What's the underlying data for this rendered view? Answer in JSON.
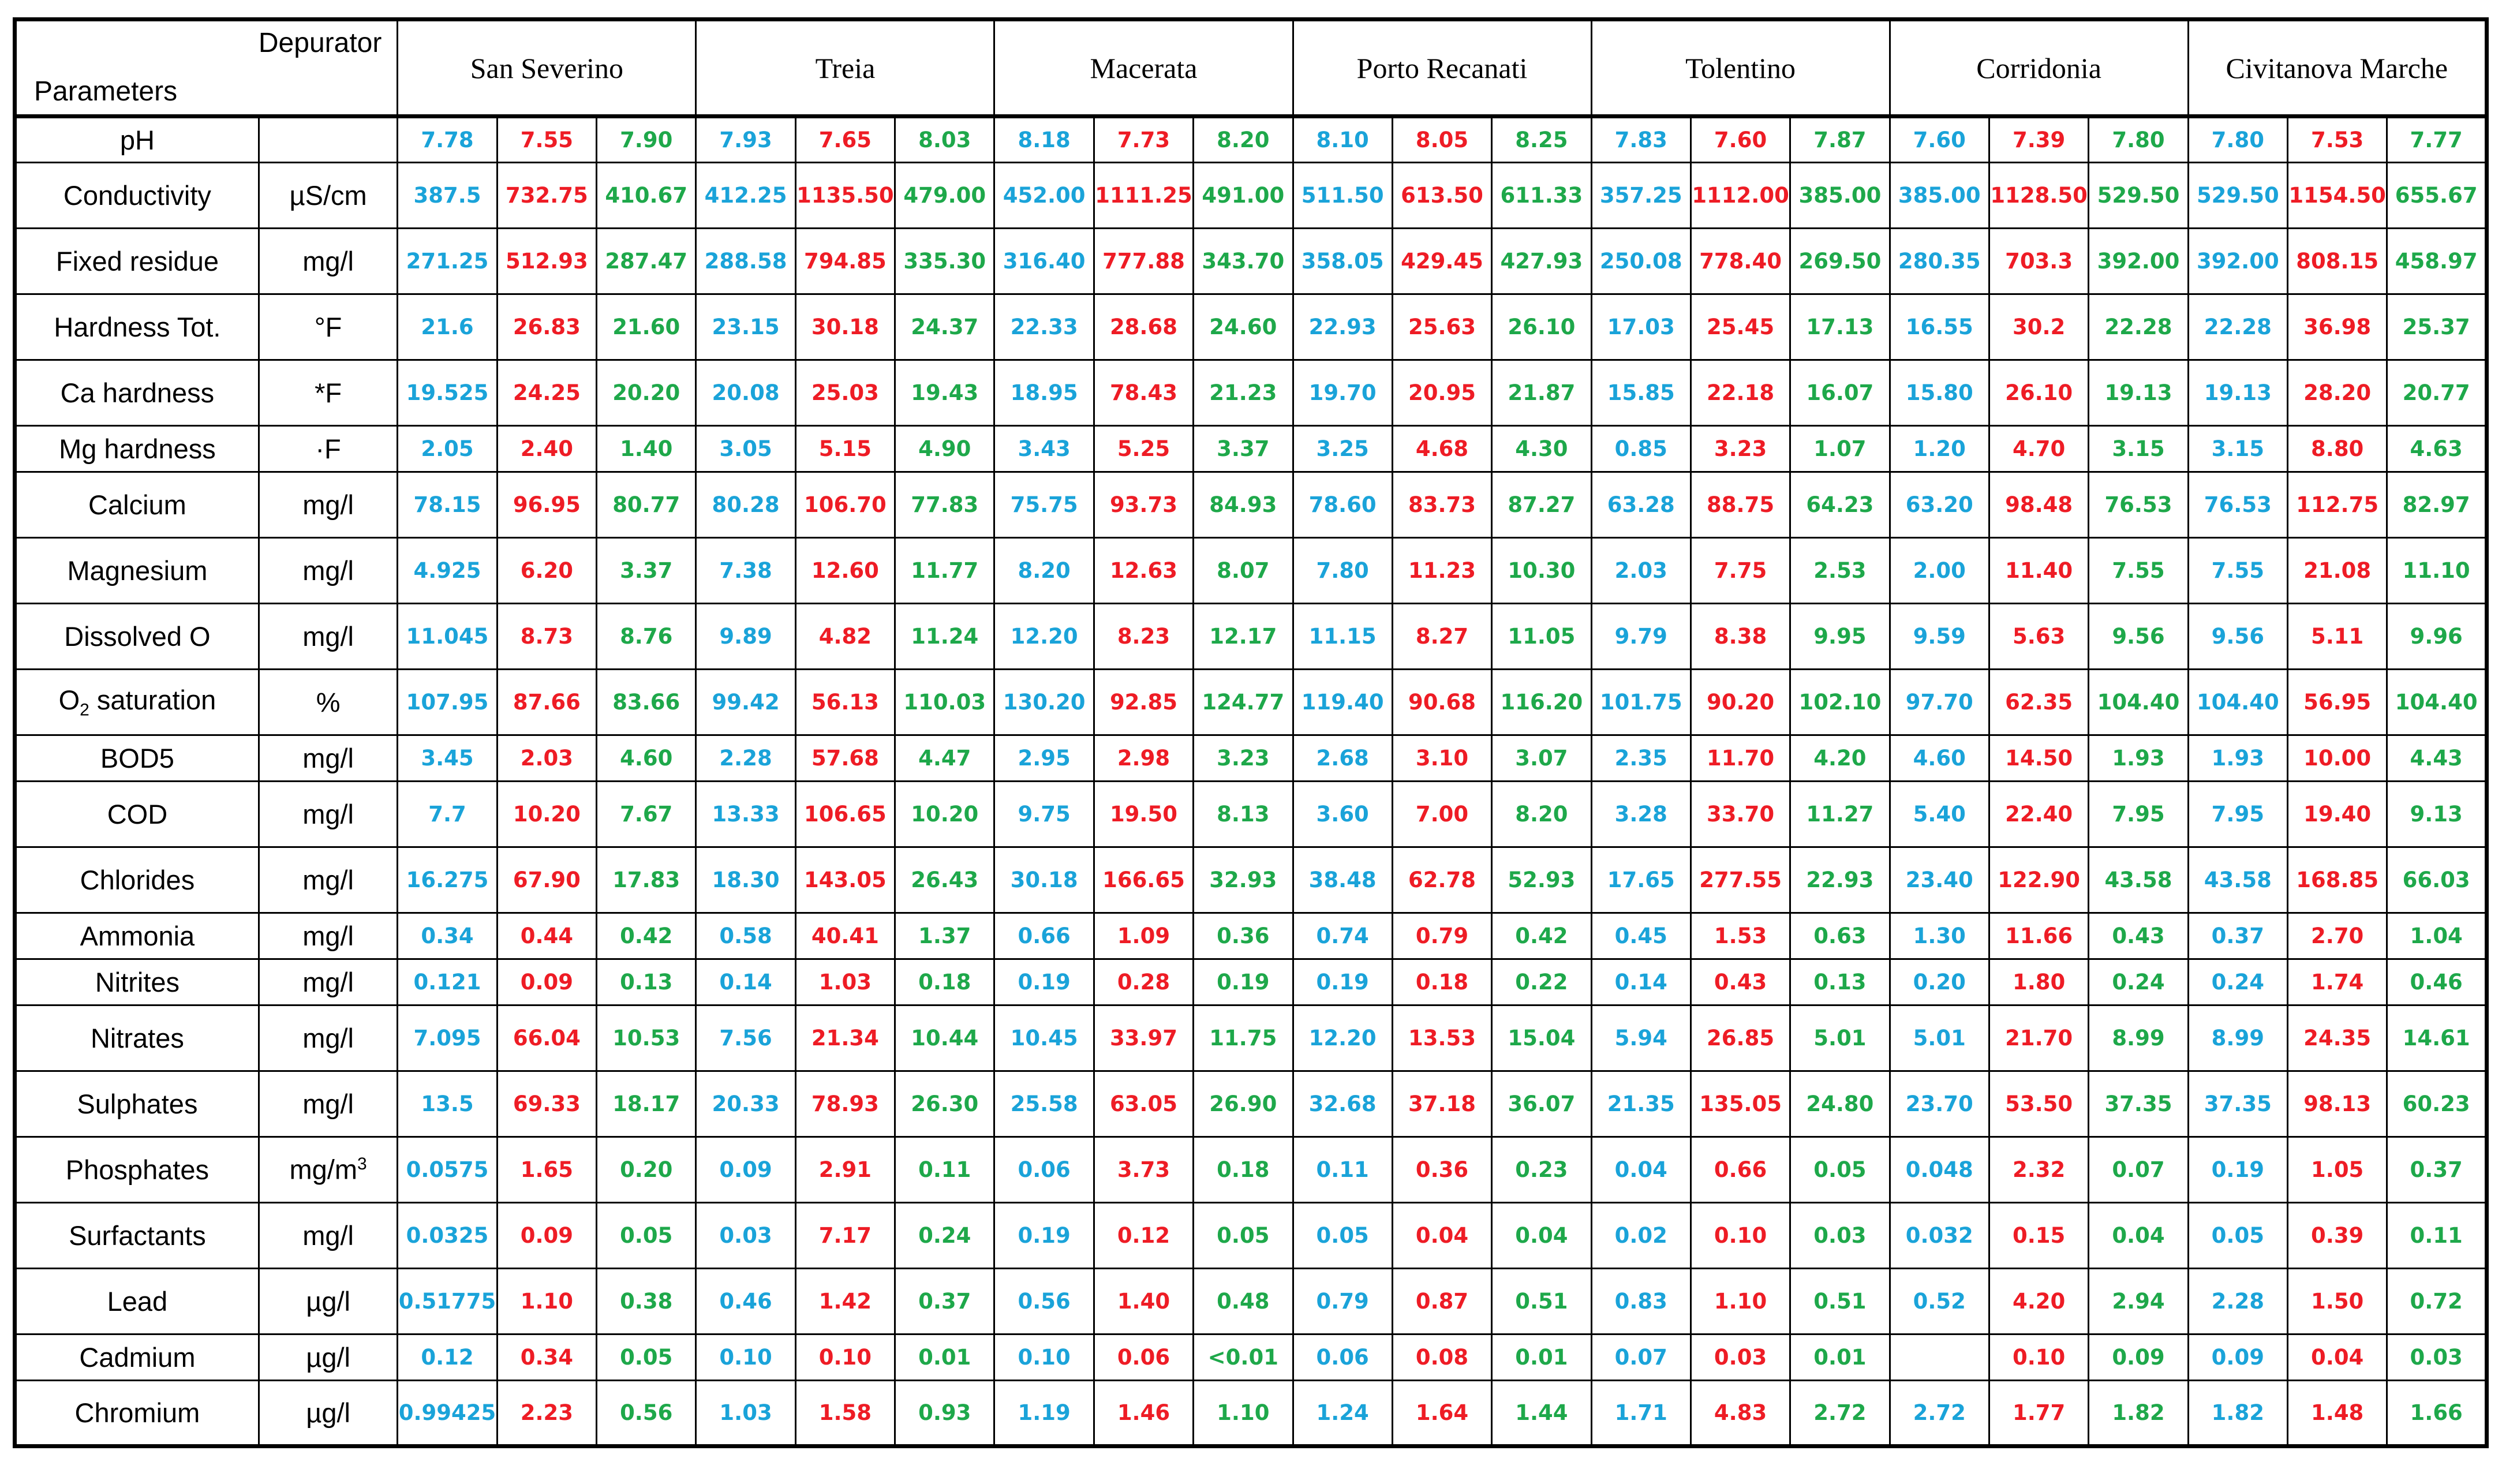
{
  "header": {
    "depurator_label": "Depurator",
    "parameters_label": "Parameters",
    "sites": [
      "San Severino",
      "Treia",
      "Macerata",
      "Porto Recanati",
      "Tolentino",
      "Corridonia",
      "Civitanova Marche"
    ]
  },
  "colors": {
    "col_1": "#1aa3d9",
    "col_2": "#ee1c25",
    "col_3": "#1ea84a"
  },
  "rows": [
    {
      "name": "pH",
      "unit": "",
      "values": [
        "7.78",
        "7.55",
        "7.90",
        "7.93",
        "7.65",
        "8.03",
        "8.18",
        "7.73",
        "8.20",
        "8.10",
        "8.05",
        "8.25",
        "7.83",
        "7.60",
        "7.87",
        "7.60",
        "7.39",
        "7.80",
        "7.80",
        "7.53",
        "7.77"
      ]
    },
    {
      "name": "Conductivity",
      "unit": "µS/cm",
      "values": [
        "387.5",
        "732.75",
        "410.67",
        "412.25",
        "1135.50",
        "479.00",
        "452.00",
        "1111.25",
        "491.00",
        "511.50",
        "613.50",
        "611.33",
        "357.25",
        "1112.00",
        "385.00",
        "385.00",
        "1128.50",
        "529.50",
        "529.50",
        "1154.50",
        "655.67"
      ]
    },
    {
      "name": "Fixed residue",
      "unit": "mg/l",
      "values": [
        "271.25",
        "512.93",
        "287.47",
        "288.58",
        "794.85",
        "335.30",
        "316.40",
        "777.88",
        "343.70",
        "358.05",
        "429.45",
        "427.93",
        "250.08",
        "778.40",
        "269.50",
        "280.35",
        "703.3",
        "392.00",
        "392.00",
        "808.15",
        "458.97"
      ]
    },
    {
      "name": "Hardness Tot.",
      "unit": "°F",
      "values": [
        "21.6",
        "26.83",
        "21.60",
        "23.15",
        "30.18",
        "24.37",
        "22.33",
        "28.68",
        "24.60",
        "22.93",
        "25.63",
        "26.10",
        "17.03",
        "25.45",
        "17.13",
        "16.55",
        "30.2",
        "22.28",
        "22.28",
        "36.98",
        "25.37"
      ]
    },
    {
      "name": "Ca hardness",
      "unit": "*F",
      "values": [
        "19.525",
        "24.25",
        "20.20",
        "20.08",
        "25.03",
        "19.43",
        "18.95",
        "78.43",
        "21.23",
        "19.70",
        "20.95",
        "21.87",
        "15.85",
        "22.18",
        "16.07",
        "15.80",
        "26.10",
        "19.13",
        "19.13",
        "28.20",
        "20.77"
      ]
    },
    {
      "name": "Mg hardness",
      "unit": "·F",
      "values": [
        "2.05",
        "2.40",
        "1.40",
        "3.05",
        "5.15",
        "4.90",
        "3.43",
        "5.25",
        "3.37",
        "3.25",
        "4.68",
        "4.30",
        "0.85",
        "3.23",
        "1.07",
        "1.20",
        "4.70",
        "3.15",
        "3.15",
        "8.80",
        "4.63"
      ]
    },
    {
      "name": "Calcium",
      "unit": "mg/l",
      "values": [
        "78.15",
        "96.95",
        "80.77",
        "80.28",
        "106.70",
        "77.83",
        "75.75",
        "93.73",
        "84.93",
        "78.60",
        "83.73",
        "87.27",
        "63.28",
        "88.75",
        "64.23",
        "63.20",
        "98.48",
        "76.53",
        "76.53",
        "112.75",
        "82.97"
      ]
    },
    {
      "name": "Magnesium",
      "unit": "mg/l",
      "values": [
        "4.925",
        "6.20",
        "3.37",
        "7.38",
        "12.60",
        "11.77",
        "8.20",
        "12.63",
        "8.07",
        "7.80",
        "11.23",
        "10.30",
        "2.03",
        "7.75",
        "2.53",
        "2.00",
        "11.40",
        "7.55",
        "7.55",
        "21.08",
        "11.10"
      ]
    },
    {
      "name": "Dissolved O",
      "unit": "mg/l",
      "values": [
        "11.045",
        "8.73",
        "8.76",
        "9.89",
        "4.82",
        "11.24",
        "12.20",
        "8.23",
        "12.17",
        "11.15",
        "8.27",
        "11.05",
        "9.79",
        "8.38",
        "9.95",
        "9.59",
        "5.63",
        "9.56",
        "9.56",
        "5.11",
        "9.96"
      ]
    },
    {
      "name_pre": "O",
      "name_sub": "2",
      "name_post": " saturation",
      "unit": "%",
      "values": [
        "107.95",
        "87.66",
        "83.66",
        "99.42",
        "56.13",
        "110.03",
        "130.20",
        "92.85",
        "124.77",
        "119.40",
        "90.68",
        "116.20",
        "101.75",
        "90.20",
        "102.10",
        "97.70",
        "62.35",
        "104.40",
        "104.40",
        "56.95",
        "104.40"
      ]
    },
    {
      "name": "BOD5",
      "unit": "mg/l",
      "values": [
        "3.45",
        "2.03",
        "4.60",
        "2.28",
        "57.68",
        "4.47",
        "2.95",
        "2.98",
        "3.23",
        "2.68",
        "3.10",
        "3.07",
        "2.35",
        "11.70",
        "4.20",
        "4.60",
        "14.50",
        "1.93",
        "1.93",
        "10.00",
        "4.43"
      ]
    },
    {
      "name": "COD",
      "unit": "mg/l",
      "values": [
        "7.7",
        "10.20",
        "7.67",
        "13.33",
        "106.65",
        "10.20",
        "9.75",
        "19.50",
        "8.13",
        "3.60",
        "7.00",
        "8.20",
        "3.28",
        "33.70",
        "11.27",
        "5.40",
        "22.40",
        "7.95",
        "7.95",
        "19.40",
        "9.13"
      ]
    },
    {
      "name": "Chlorides",
      "unit": "mg/l",
      "values": [
        "16.275",
        "67.90",
        "17.83",
        "18.30",
        "143.05",
        "26.43",
        "30.18",
        "166.65",
        "32.93",
        "38.48",
        "62.78",
        "52.93",
        "17.65",
        "277.55",
        "22.93",
        "23.40",
        "122.90",
        "43.58",
        "43.58",
        "168.85",
        "66.03"
      ]
    },
    {
      "name": "Ammonia",
      "unit": "mg/l",
      "values": [
        "0.34",
        "0.44",
        "0.42",
        "0.58",
        "40.41",
        "1.37",
        "0.66",
        "1.09",
        "0.36",
        "0.74",
        "0.79",
        "0.42",
        "0.45",
        "1.53",
        "0.63",
        "1.30",
        "11.66",
        "0.43",
        "0.37",
        "2.70",
        "1.04"
      ]
    },
    {
      "name": "Nitrites",
      "unit": "mg/l",
      "values": [
        "0.121",
        "0.09",
        "0.13",
        "0.14",
        "1.03",
        "0.18",
        "0.19",
        "0.28",
        "0.19",
        "0.19",
        "0.18",
        "0.22",
        "0.14",
        "0.43",
        "0.13",
        "0.20",
        "1.80",
        "0.24",
        "0.24",
        "1.74",
        "0.46"
      ]
    },
    {
      "name": "Nitrates",
      "unit": "mg/l",
      "values": [
        "7.095",
        "66.04",
        "10.53",
        "7.56",
        "21.34",
        "10.44",
        "10.45",
        "33.97",
        "11.75",
        "12.20",
        "13.53",
        "15.04",
        "5.94",
        "26.85",
        "5.01",
        "5.01",
        "21.70",
        "8.99",
        "8.99",
        "24.35",
        "14.61"
      ]
    },
    {
      "name": "Sulphates",
      "unit": "mg/l",
      "values": [
        "13.5",
        "69.33",
        "18.17",
        "20.33",
        "78.93",
        "26.30",
        "25.58",
        "63.05",
        "26.90",
        "32.68",
        "37.18",
        "36.07",
        "21.35",
        "135.05",
        "24.80",
        "23.70",
        "53.50",
        "37.35",
        "37.35",
        "98.13",
        "60.23"
      ]
    },
    {
      "name": "Phosphates",
      "unit_pre": "mg/m",
      "unit_sup": "3",
      "values": [
        "0.0575",
        "1.65",
        "0.20",
        "0.09",
        "2.91",
        "0.11",
        "0.06",
        "3.73",
        "0.18",
        "0.11",
        "0.36",
        "0.23",
        "0.04",
        "0.66",
        "0.05",
        "0.048",
        "2.32",
        "0.07",
        "0.19",
        "1.05",
        "0.37"
      ]
    },
    {
      "name": "Surfactants",
      "unit": "mg/l",
      "values": [
        "0.0325",
        "0.09",
        "0.05",
        "0.03",
        "7.17",
        "0.24",
        "0.19",
        "0.12",
        "0.05",
        "0.05",
        "0.04",
        "0.04",
        "0.02",
        "0.10",
        "0.03",
        "0.032",
        "0.15",
        "0.04",
        "0.05",
        "0.39",
        "0.11"
      ]
    },
    {
      "name": "Lead",
      "unit": "µg/l",
      "values": [
        "0.51775",
        "1.10",
        "0.38",
        "0.46",
        "1.42",
        "0.37",
        "0.56",
        "1.40",
        "0.48",
        "0.79",
        "0.87",
        "0.51",
        "0.83",
        "1.10",
        "0.51",
        "0.52",
        "4.20",
        "2.94",
        "2.28",
        "1.50",
        "0.72"
      ]
    },
    {
      "name": "Cadmium",
      "unit": "µg/l",
      "values": [
        "0.12",
        "0.34",
        "0.05",
        "0.10",
        "0.10",
        "0.01",
        "0.10",
        "0.06",
        "<0.01",
        "0.06",
        "0.08",
        "0.01",
        "0.07",
        "0.03",
        "0.01",
        "",
        "0.10",
        "0.09",
        "0.09",
        "0.04",
        "0.03"
      ]
    },
    {
      "name": "Chromium",
      "unit": "µg/l",
      "values": [
        "0.99425",
        "2.23",
        "0.56",
        "1.03",
        "1.58",
        "0.93",
        "1.19",
        "1.46",
        "1.10",
        "1.24",
        "1.64",
        "1.44",
        "1.71",
        "4.83",
        "2.72",
        "2.72",
        "1.77",
        "1.82",
        "1.82",
        "1.48",
        "1.66"
      ]
    }
  ]
}
